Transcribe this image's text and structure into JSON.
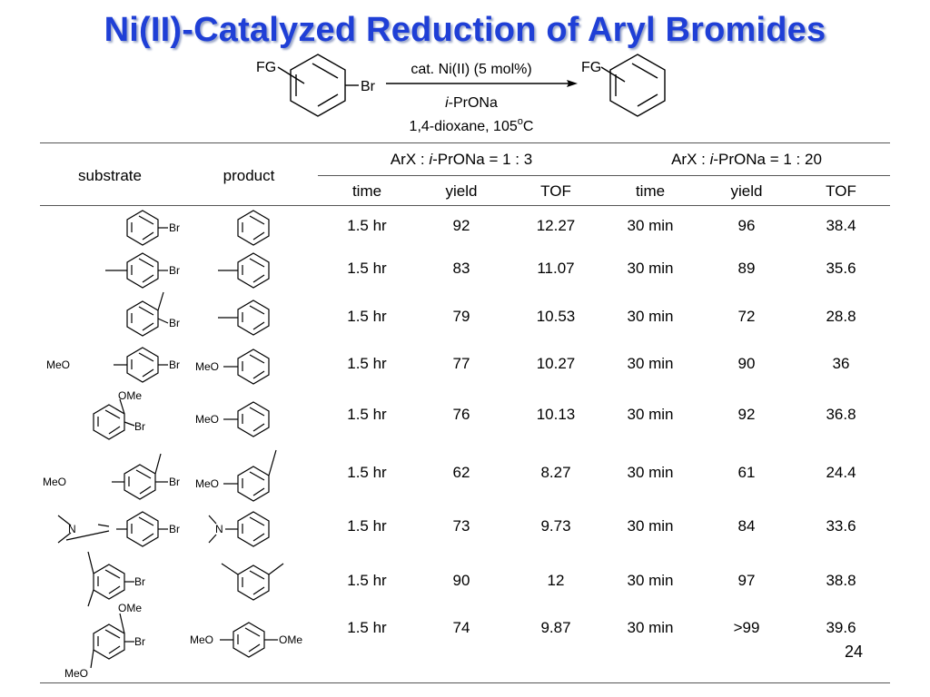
{
  "slide": {
    "title": "Ni(II)-Catalyzed Reduction of Aryl Bromides",
    "page_number": "24"
  },
  "scheme": {
    "fg_label": "FG",
    "br_label": "Br",
    "above_arrow": "cat. Ni(II) (5 mol%)",
    "reagent_italic": "i",
    "reagent_rest": "-PrONa",
    "conditions": "1,4-dioxane, 105",
    "degree": "o",
    "unit": "C"
  },
  "table": {
    "col_substrate": "substrate",
    "col_product": "product",
    "group1": {
      "lead": "ArX : ",
      "italic": "i",
      "rest": "-PrONa = 1 : 3"
    },
    "group2": {
      "lead": "ArX : ",
      "italic": "i",
      "rest": "-PrONa = 1 : 20"
    },
    "sub_headers": [
      "time",
      "yield",
      "TOF",
      "time",
      "yield",
      "TOF"
    ],
    "rows": [
      {
        "cells": [
          "1.5 hr",
          "92",
          "12.27",
          "30 min",
          "96",
          "38.4"
        ]
      },
      {
        "cells": [
          "1.5 hr",
          "83",
          "11.07",
          "30 min",
          "89",
          "35.6"
        ]
      },
      {
        "cells": [
          "1.5 hr",
          "79",
          "10.53",
          "30 min",
          "72",
          "28.8"
        ]
      },
      {
        "cells": [
          "1.5 hr",
          "77",
          "10.27",
          "30 min",
          "90",
          "36"
        ]
      },
      {
        "cells": [
          "1.5 hr",
          "76",
          "10.13",
          "30 min",
          "92",
          "36.8"
        ]
      },
      {
        "cells": [
          "1.5 hr",
          "62",
          "8.27",
          "30 min",
          "61",
          "24.4"
        ]
      },
      {
        "cells": [
          "1.5 hr",
          "73",
          "9.73",
          "30 min",
          "84",
          "33.6"
        ]
      },
      {
        "cells": [
          "1.5 hr",
          "90",
          "12",
          "30 min",
          "97",
          "38.8"
        ]
      },
      {
        "cells": [
          "1.5 hr",
          "74",
          "9.87",
          "30 min",
          ">99",
          "39.6"
        ]
      }
    ]
  },
  "labels": {
    "br": "Br",
    "meo": "MeO",
    "ome": "OMe",
    "n": "N"
  }
}
